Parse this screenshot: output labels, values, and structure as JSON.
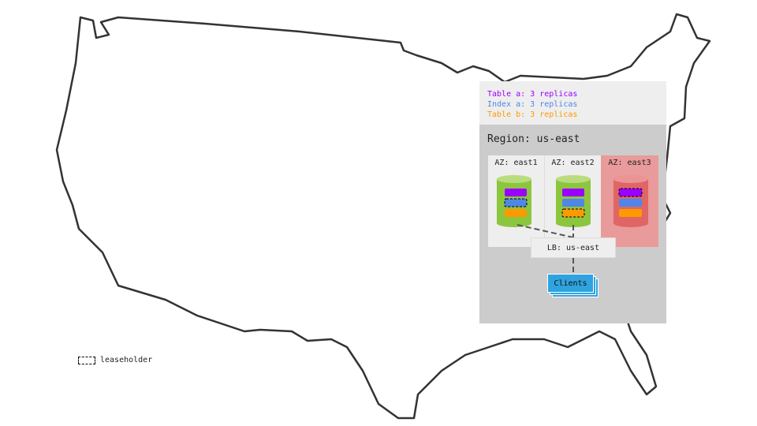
{
  "legend": {
    "items": [
      {
        "label": "Table a: 3 replicas",
        "color": "#9b00ff"
      },
      {
        "label": "Index a: 3 replicas",
        "color": "#4f86e8"
      },
      {
        "label": "Table b: 3 replicas",
        "color": "#ff9900"
      }
    ],
    "leaseholder_label": "leaseholder"
  },
  "region": {
    "title": "Region: us-east",
    "zones": [
      {
        "label": "AZ: east1",
        "status": "healthy",
        "leaseholder": "Index a"
      },
      {
        "label": "AZ: east2",
        "status": "healthy",
        "leaseholder": "Table b"
      },
      {
        "label": "AZ: east3",
        "status": "failed",
        "leaseholder": "Table a"
      }
    ],
    "load_balancer": "LB: us-east",
    "clients": "Clients"
  },
  "colors": {
    "healthy": "#8cc63f",
    "failed": "#e06666",
    "clients": "#2fa3df"
  }
}
